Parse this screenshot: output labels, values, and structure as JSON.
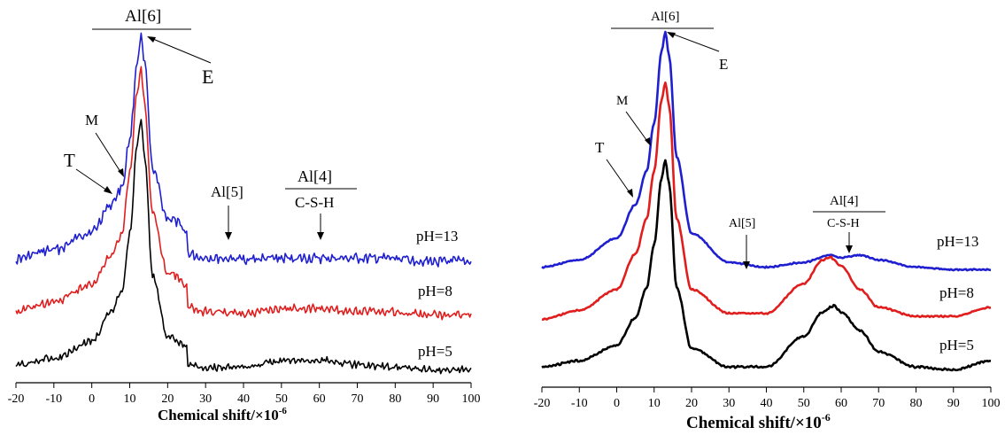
{
  "colors": {
    "pH13": "#1f1fd0",
    "pH8": "#e01e1e",
    "pH5": "#000000"
  },
  "chart_data": [
    {
      "type": "line",
      "xlabel": "Chemical shift/×10",
      "xlabel_sup": "-6",
      "xlim": [
        -20,
        100
      ],
      "x_ticks": [
        "-20",
        "-10",
        "0",
        "10",
        "20",
        "30",
        "40",
        "50",
        "60",
        "70",
        "80",
        "90",
        "100"
      ],
      "y_ticks": false,
      "series": [
        {
          "name": "pH=13",
          "color": "#1f1fd0",
          "offset": 0.0,
          "peak": 1.0,
          "hump": 0.06,
          "noise": 0.03,
          "x": [
            -20,
            -10,
            0,
            5,
            8,
            10,
            12,
            13,
            14,
            16,
            20,
            30,
            40,
            50,
            60,
            70,
            80,
            90,
            100
          ],
          "y": [
            0.02,
            0.06,
            0.14,
            0.26,
            0.34,
            0.55,
            0.9,
            1.0,
            0.88,
            0.42,
            0.2,
            0.07,
            0.05,
            0.06,
            0.06,
            0.06,
            0.06,
            0.02,
            0.02
          ]
        },
        {
          "name": "pH=8",
          "color": "#e01e1e",
          "offset": -0.23,
          "peak": 0.82,
          "hump": 0.08,
          "noise": 0.025,
          "x": [
            -20,
            -10,
            0,
            5,
            8,
            10,
            12,
            13,
            14,
            16,
            20,
            30,
            40,
            50,
            60,
            70,
            80,
            90,
            100
          ],
          "y": [
            0.02,
            0.05,
            0.11,
            0.2,
            0.28,
            0.48,
            0.75,
            0.82,
            0.7,
            0.34,
            0.15,
            0.05,
            0.04,
            0.08,
            0.08,
            0.06,
            0.05,
            0.02,
            0.02
          ]
        },
        {
          "name": "pH=5",
          "color": "#000000",
          "offset": -0.47,
          "peak": 0.73,
          "hump": 0.1,
          "noise": 0.022,
          "x": [
            -20,
            -10,
            0,
            5,
            8,
            10,
            12,
            13,
            14,
            16,
            20,
            30,
            40,
            50,
            60,
            70,
            80,
            90,
            100
          ],
          "y": [
            0.02,
            0.04,
            0.09,
            0.17,
            0.24,
            0.4,
            0.66,
            0.73,
            0.62,
            0.28,
            0.1,
            0.04,
            0.04,
            0.09,
            0.1,
            0.06,
            0.04,
            0.02,
            0.02
          ]
        }
      ],
      "annotations": {
        "al6": "Al[6]",
        "E": "E",
        "M": "M",
        "T": "T",
        "al5": "Al[5]",
        "al4": "Al[4]",
        "csh": "C-S-H"
      }
    },
    {
      "type": "line",
      "xlabel": "Chemical shift/×10",
      "xlabel_sup": "-6",
      "xlim": [
        -20,
        100
      ],
      "x_ticks": [
        "-20",
        "-10",
        "0",
        "10",
        "20",
        "30",
        "40",
        "50",
        "60",
        "70",
        "80",
        "90",
        "100"
      ],
      "y_ticks": false,
      "series": [
        {
          "name": "pH=13",
          "color": "#1f1fd0",
          "x": [
            -20,
            -10,
            0,
            5,
            8,
            10,
            12,
            13,
            14,
            16,
            20,
            30,
            40,
            50,
            57,
            60,
            65,
            70,
            80,
            90,
            100
          ],
          "y": [
            0.02,
            0.05,
            0.14,
            0.28,
            0.42,
            0.62,
            0.92,
            1.0,
            0.9,
            0.48,
            0.16,
            0.04,
            0.02,
            0.04,
            0.07,
            0.06,
            0.07,
            0.05,
            0.02,
            0.01,
            0.01
          ]
        },
        {
          "name": "pH=8",
          "color": "#e01e1e",
          "x": [
            -20,
            -10,
            0,
            5,
            8,
            10,
            12,
            13,
            14,
            16,
            20,
            30,
            40,
            50,
            55,
            57,
            60,
            65,
            70,
            80,
            90,
            100
          ],
          "y": [
            0.02,
            0.05,
            0.12,
            0.24,
            0.36,
            0.52,
            0.76,
            0.82,
            0.74,
            0.36,
            0.12,
            0.04,
            0.04,
            0.14,
            0.22,
            0.23,
            0.2,
            0.12,
            0.06,
            0.03,
            0.03,
            0.06
          ]
        },
        {
          "name": "pH=5",
          "color": "#000000",
          "x": [
            -20,
            -10,
            0,
            5,
            8,
            10,
            12,
            13,
            14,
            16,
            20,
            30,
            40,
            50,
            55,
            58,
            60,
            65,
            70,
            80,
            90,
            100
          ],
          "y": [
            0.02,
            0.04,
            0.09,
            0.18,
            0.28,
            0.42,
            0.64,
            0.7,
            0.62,
            0.28,
            0.08,
            0.02,
            0.02,
            0.12,
            0.2,
            0.22,
            0.2,
            0.14,
            0.07,
            0.02,
            0.01,
            0.04
          ]
        }
      ],
      "annotations": {
        "al6": "Al[6]",
        "E": "E",
        "M": "M",
        "T": "T",
        "al5": "Al[5]",
        "al4": "Al[4]",
        "csh": "C-S-H"
      }
    }
  ]
}
